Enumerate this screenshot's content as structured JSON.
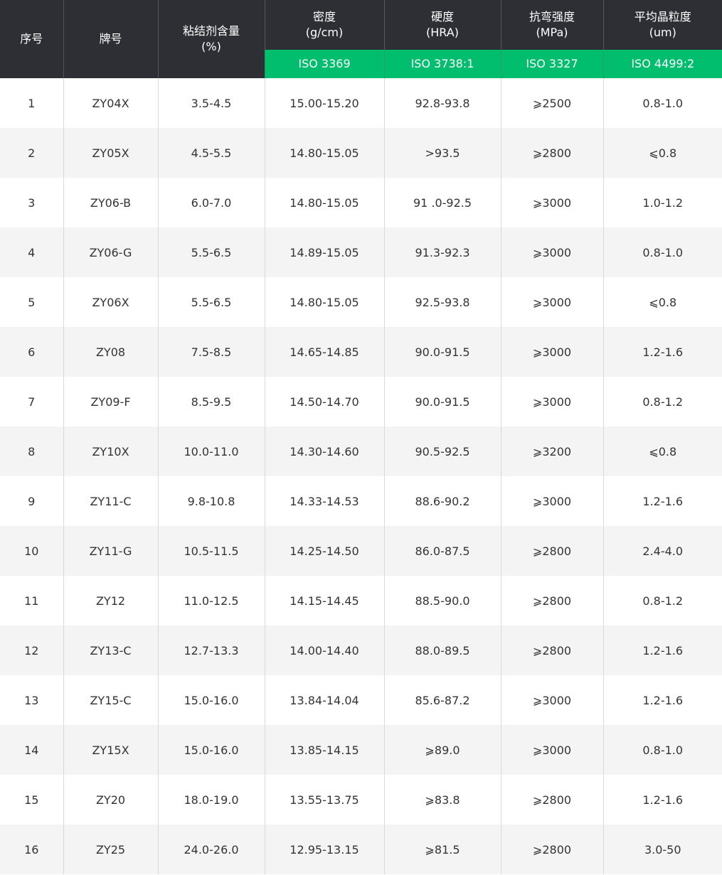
{
  "colors": {
    "header_bg": "#2e2f35",
    "standard_bg": "#00be6e",
    "alt_row_bg": "#f4f4f4"
  },
  "headers": [
    {
      "title": "序号",
      "unit": ""
    },
    {
      "title": "牌号",
      "unit": ""
    },
    {
      "title": "粘结剂含量",
      "unit": "(%)"
    },
    {
      "title": "密度",
      "unit": "(g/cm)",
      "standard": "ISO 3369"
    },
    {
      "title": "硬度",
      "unit": "(HRA)",
      "standard": "ISO 3738:1"
    },
    {
      "title": "抗弯强度",
      "unit": "(MPa)",
      "standard": "ISO 3327"
    },
    {
      "title": "平均晶粒度",
      "unit": "(um)",
      "standard": "ISO 4499:2"
    }
  ],
  "rows": [
    [
      "1",
      "ZY04X",
      "3.5-4.5",
      "15.00-15.20",
      "92.8-93.8",
      "⩾2500",
      "0.8-1.0"
    ],
    [
      "2",
      "ZY05X",
      "4.5-5.5",
      "14.80-15.05",
      ">93.5",
      "⩾2800",
      "⩽0.8"
    ],
    [
      "3",
      "ZY06-B",
      "6.0-7.0",
      "14.80-15.05",
      "91 .0-92.5",
      "⩾3000",
      "1.0-1.2"
    ],
    [
      "4",
      "ZY06-G",
      "5.5-6.5",
      "14.89-15.05",
      "91.3-92.3",
      "⩾3000",
      "0.8-1.0"
    ],
    [
      "5",
      "ZY06X",
      "5.5-6.5",
      "14.80-15.05",
      "92.5-93.8",
      "⩾3000",
      "⩽0.8"
    ],
    [
      "6",
      "ZY08",
      "7.5-8.5",
      "14.65-14.85",
      "90.0-91.5",
      "⩾3000",
      "1.2-1.6"
    ],
    [
      "7",
      "ZY09-F",
      "8.5-9.5",
      "14.50-14.70",
      "90.0-91.5",
      "⩾3000",
      "0.8-1.2"
    ],
    [
      "8",
      "ZY10X",
      "10.0-11.0",
      "14.30-14.60",
      "90.5-92.5",
      "⩾3200",
      "⩽0.8"
    ],
    [
      "9",
      "ZY11-C",
      "9.8-10.8",
      "14.33-14.53",
      "88.6-90.2",
      "⩾3000",
      "1.2-1.6"
    ],
    [
      "10",
      "ZY11-G",
      "10.5-11.5",
      "14.25-14.50",
      "86.0-87.5",
      "⩾2800",
      "2.4-4.0"
    ],
    [
      "11",
      "ZY12",
      "11.0-12.5",
      "14.15-14.45",
      "88.5-90.0",
      "⩾2800",
      "0.8-1.2"
    ],
    [
      "12",
      "ZY13-C",
      "12.7-13.3",
      "14.00-14.40",
      "88.0-89.5",
      "⩾2800",
      "1.2-1.6"
    ],
    [
      "13",
      "ZY15-C",
      "15.0-16.0",
      "13.84-14.04",
      "85.6-87.2",
      "⩾3000",
      "1.2-1.6"
    ],
    [
      "14",
      "ZY15X",
      "15.0-16.0",
      "13.85-14.15",
      "⩾89.0",
      "⩾3000",
      "0.8-1.0"
    ],
    [
      "15",
      "ZY20",
      "18.0-19.0",
      "13.55-13.75",
      "⩾83.8",
      "⩾2800",
      "1.2-1.6"
    ],
    [
      "16",
      "ZY25",
      "24.0-26.0",
      "12.95-13.15",
      "⩾81.5",
      "⩾2800",
      "3.0-50"
    ]
  ]
}
